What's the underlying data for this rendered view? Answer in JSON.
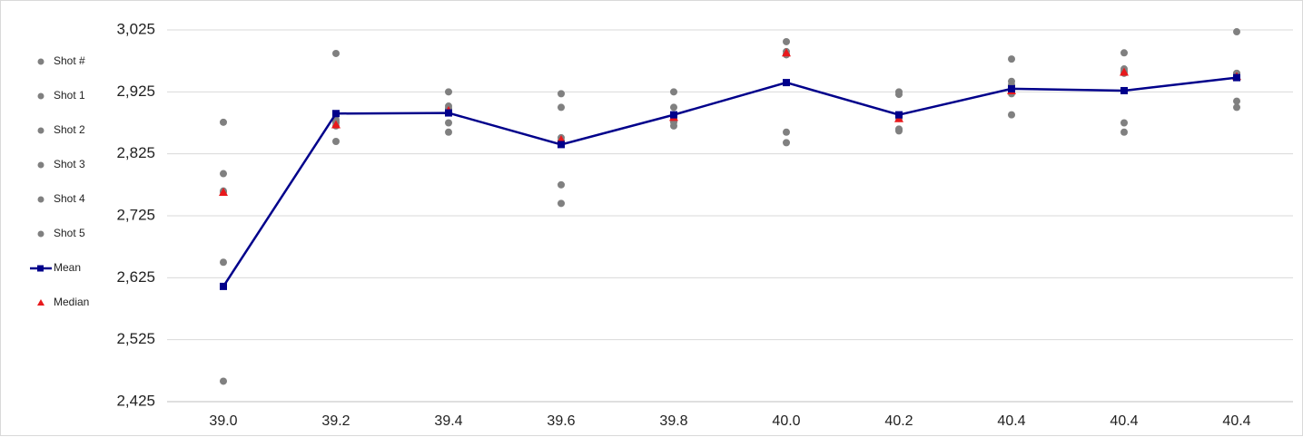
{
  "chart_data": {
    "type": "scatter",
    "title": "",
    "xlabel": "",
    "ylabel": "",
    "categories": [
      "39.0",
      "39.2",
      "39.4",
      "39.6",
      "39.8",
      "40.0",
      "40.2",
      "40.4",
      "40.4",
      "40.4"
    ],
    "y_ticks": [
      "3,025",
      "2,925",
      "2,825",
      "2,725",
      "2,625",
      "2,525",
      "2,425"
    ],
    "ylim": [
      2425,
      3025
    ],
    "grid": true,
    "legend_position": "left",
    "colors": {
      "shots": "#808080",
      "mean": "#00008b",
      "median": "#e8191c"
    },
    "series": [
      {
        "name": "Shot #",
        "style": "dot",
        "values": [
          2793,
          2987,
          2925,
          2922,
          2925,
          3006,
          2925,
          2978,
          2988,
          3022
        ]
      },
      {
        "name": "Shot 1",
        "style": "dot",
        "values": [
          2876,
          2876,
          2902,
          2900,
          2900,
          2990,
          2921,
          2942,
          2875,
          2955
        ]
      },
      {
        "name": "Shot 2",
        "style": "dot",
        "values": [
          2763,
          2845,
          2875,
          2851,
          2870,
          2860,
          2865,
          2922,
          2860,
          2910
        ]
      },
      {
        "name": "Shot 3",
        "style": "dot",
        "values": [
          2650,
          2880,
          2860,
          2775,
          2876,
          2843,
          2862,
          2936,
          2958,
          2900
        ]
      },
      {
        "name": "Shot 4",
        "style": "dot",
        "values": [
          2765,
          2870,
          2895,
          2745,
          2880,
          2985,
          2887,
          2888,
          2962,
          2955
        ]
      },
      {
        "name": "Shot 5",
        "style": "dot",
        "values": [
          2458,
          2875,
          2898,
          2846,
          2885,
          2985,
          2882,
          2927,
          2955,
          2950
        ]
      },
      {
        "name": "Mean",
        "style": "line-square",
        "values": [
          2611,
          2890,
          2891,
          2840,
          2888,
          2940,
          2888,
          2930,
          2927,
          2948
        ]
      },
      {
        "name": "Median",
        "style": "triangle",
        "values": [
          2763,
          2872,
          2895,
          2848,
          2884,
          2988,
          2882,
          2927,
          2957,
          2950
        ]
      }
    ]
  }
}
